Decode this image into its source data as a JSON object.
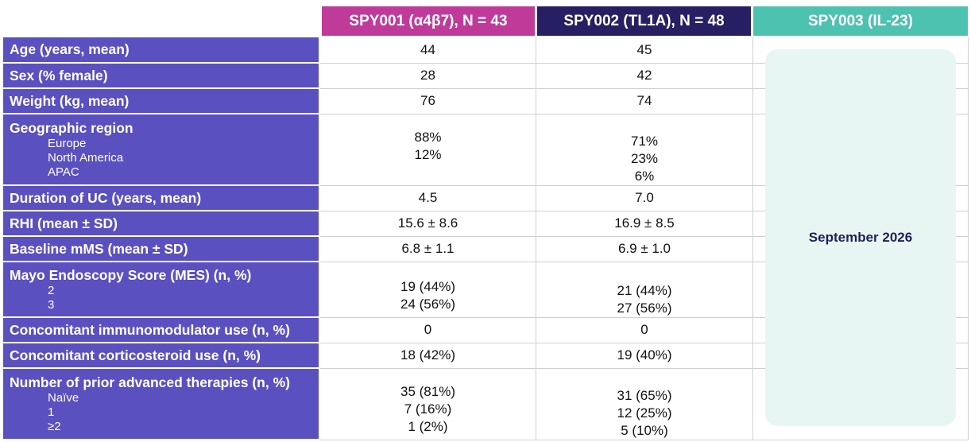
{
  "headers": [
    "SPY001 (α4β7), N = 43",
    "SPY002 (TL1A), N = 48",
    "SPY003 (IL-23)"
  ],
  "spy003_note": "September 2026",
  "rows": [
    {
      "label": "Age (years, mean)",
      "v1": "44",
      "v2": "45"
    },
    {
      "label": "Sex (% female)",
      "v1": "28",
      "v2": "42"
    },
    {
      "label": "Weight (kg, mean)",
      "v1": "76",
      "v2": "74"
    },
    {
      "label": "Geographic region",
      "subs": [
        "Europe",
        "North America",
        "APAC"
      ],
      "v1_lines": [
        "88%",
        "12%"
      ],
      "v2_lines": [
        "71%",
        "23%",
        "6%"
      ]
    },
    {
      "label": "Duration of UC (years, mean)",
      "v1": "4.5",
      "v2": "7.0"
    },
    {
      "label": "RHI (mean ± SD)",
      "v1": "15.6 ± 8.6",
      "v2": "16.9 ± 8.5"
    },
    {
      "label": "Baseline mMS (mean ± SD)",
      "v1": "6.8 ± 1.1",
      "v2": "6.9 ± 1.0"
    },
    {
      "label": "Mayo Endoscopy Score (MES) (n, %)",
      "subs": [
        "2",
        "3"
      ],
      "v1_lines": [
        "19 (44%)",
        "24 (56%)"
      ],
      "v2_lines": [
        "21 (44%)",
        "27 (56%)"
      ]
    },
    {
      "label": "Concomitant immunomodulator use (n, %)",
      "v1": "0",
      "v2": "0"
    },
    {
      "label": "Concomitant corticosteroid use (n, %)",
      "v1": "18 (42%)",
      "v2": "19 (40%)"
    },
    {
      "label": "Number of prior advanced therapies (n, %)",
      "subs": [
        "Naïve",
        "1",
        "≥2"
      ],
      "v1_lines": [
        "35 (81%)",
        "7 (16%)",
        "1 (2%)"
      ],
      "v2_lines": [
        "31 (65%)",
        "12 (25%)",
        "5 (10%)"
      ]
    }
  ]
}
